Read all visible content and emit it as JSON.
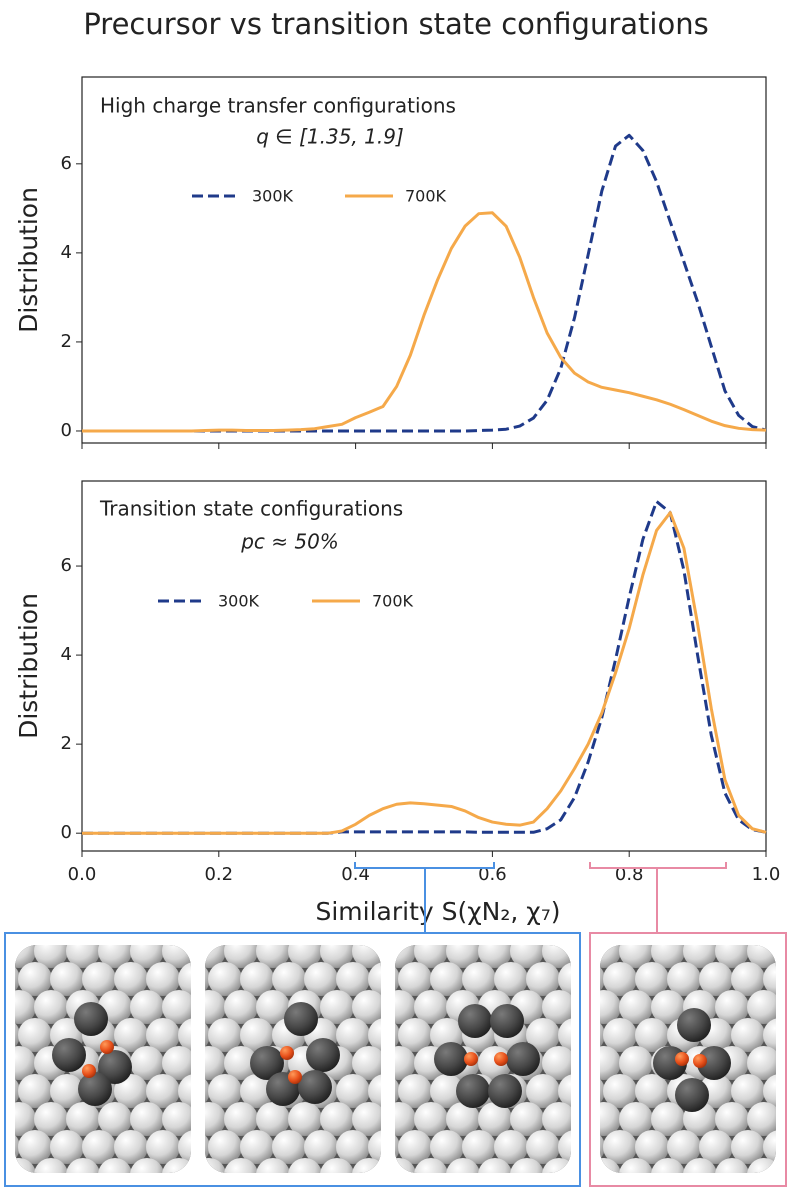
{
  "title": "Precursor vs transition state configurations",
  "chart_data": [
    {
      "type": "line",
      "annotations": [
        "High charge transfer configurations",
        "q ∈ [1.35, 1.9]"
      ],
      "y_label": "Distribution",
      "x": [
        0,
        0.02,
        0.04,
        0.06,
        0.08,
        0.1,
        0.12,
        0.14,
        0.16,
        0.18,
        0.2,
        0.22,
        0.24,
        0.26,
        0.28,
        0.3,
        0.32,
        0.34,
        0.36,
        0.38,
        0.4,
        0.42,
        0.44,
        0.46,
        0.48,
        0.5,
        0.52,
        0.54,
        0.56,
        0.58,
        0.6,
        0.62,
        0.64,
        0.66,
        0.68,
        0.7,
        0.72,
        0.74,
        0.76,
        0.78,
        0.8,
        0.82,
        0.84,
        0.86,
        0.88,
        0.9,
        0.92,
        0.94,
        0.96,
        0.98,
        1
      ],
      "series": [
        {
          "name": "300K",
          "color": "#1f3a8a",
          "linestyle": "dashed",
          "values": [
            0,
            0,
            0,
            0,
            0,
            0,
            0,
            0,
            0,
            0,
            0,
            0,
            0,
            0,
            0,
            0,
            0,
            0,
            0,
            0,
            0,
            0,
            0,
            0,
            0,
            0,
            0,
            0,
            0,
            0.01,
            0.02,
            0.04,
            0.11,
            0.29,
            0.69,
            1.41,
            2.54,
            3.96,
            5.39,
            6.4,
            6.64,
            6.3,
            5.6,
            4.7,
            3.8,
            2.9,
            1.9,
            0.9,
            0.35,
            0.1,
            0.02
          ]
        },
        {
          "name": "700K",
          "color": "#f5a94a",
          "linestyle": "solid",
          "values": [
            0,
            0,
            0,
            0,
            0,
            0,
            0,
            0,
            0,
            0.01,
            0.02,
            0.02,
            0.01,
            0.01,
            0.01,
            0.02,
            0.03,
            0.05,
            0.1,
            0.15,
            0.3,
            0.42,
            0.55,
            1.0,
            1.7,
            2.6,
            3.4,
            4.1,
            4.6,
            4.88,
            4.9,
            4.6,
            3.9,
            3.0,
            2.2,
            1.65,
            1.3,
            1.1,
            0.98,
            0.92,
            0.86,
            0.78,
            0.7,
            0.6,
            0.48,
            0.35,
            0.22,
            0.12,
            0.06,
            0.03,
            0.02
          ]
        }
      ],
      "xlim": [
        0,
        1
      ],
      "xticks": [
        0,
        0.2,
        0.4,
        0.6,
        0.8,
        1
      ],
      "ylim": [
        -0.27,
        7.95
      ],
      "yticks": [
        0,
        2,
        4,
        6
      ]
    },
    {
      "type": "line",
      "annotations": [
        "Transition state configurations",
        "pc ≈ 50%"
      ],
      "y_label": "Distribution",
      "x_label": "Similarity S(χN₂, χ₇)",
      "x": [
        0,
        0.02,
        0.04,
        0.06,
        0.08,
        0.1,
        0.12,
        0.14,
        0.16,
        0.18,
        0.2,
        0.22,
        0.24,
        0.26,
        0.28,
        0.3,
        0.32,
        0.34,
        0.36,
        0.38,
        0.4,
        0.42,
        0.44,
        0.46,
        0.48,
        0.5,
        0.52,
        0.54,
        0.56,
        0.58,
        0.6,
        0.62,
        0.64,
        0.66,
        0.68,
        0.7,
        0.72,
        0.74,
        0.76,
        0.78,
        0.8,
        0.82,
        0.84,
        0.86,
        0.88,
        0.9,
        0.92,
        0.94,
        0.96,
        0.98,
        1
      ],
      "series": [
        {
          "name": "300K",
          "color": "#1f3a8a",
          "linestyle": "dashed",
          "values": [
            0,
            0,
            0,
            0,
            0,
            0,
            0,
            0,
            0,
            0,
            0,
            0,
            0,
            0,
            0,
            0,
            0,
            0,
            0,
            0.03,
            0.03,
            0.03,
            0.03,
            0.03,
            0.03,
            0.03,
            0.03,
            0.03,
            0.03,
            0.02,
            0.02,
            0.02,
            0.02,
            0.02,
            0.1,
            0.3,
            0.8,
            1.6,
            2.6,
            3.9,
            5.3,
            6.6,
            7.45,
            7.2,
            5.9,
            4.0,
            2.2,
            0.9,
            0.3,
            0.08,
            0.02
          ]
        },
        {
          "name": "700K",
          "color": "#f5a94a",
          "linestyle": "solid",
          "values": [
            0,
            0,
            0,
            0,
            0,
            0,
            0,
            0,
            0,
            0,
            0,
            0,
            0,
            0,
            0,
            0,
            0,
            0,
            0,
            0.05,
            0.2,
            0.4,
            0.55,
            0.65,
            0.68,
            0.66,
            0.63,
            0.6,
            0.5,
            0.35,
            0.25,
            0.2,
            0.18,
            0.25,
            0.55,
            0.95,
            1.45,
            2.0,
            2.7,
            3.6,
            4.6,
            5.8,
            6.8,
            7.2,
            6.4,
            4.7,
            2.8,
            1.2,
            0.4,
            0.1,
            0.02
          ]
        }
      ],
      "xlim": [
        0,
        1
      ],
      "xticks": [
        {
          "value": 0,
          "label": "0.0"
        },
        0.2,
        0.4,
        0.6,
        0.8,
        {
          "value": 1,
          "label": "1.0"
        }
      ],
      "ylim": [
        -0.4,
        7.91
      ],
      "yticks": [
        0,
        2,
        4,
        6
      ]
    }
  ]
}
